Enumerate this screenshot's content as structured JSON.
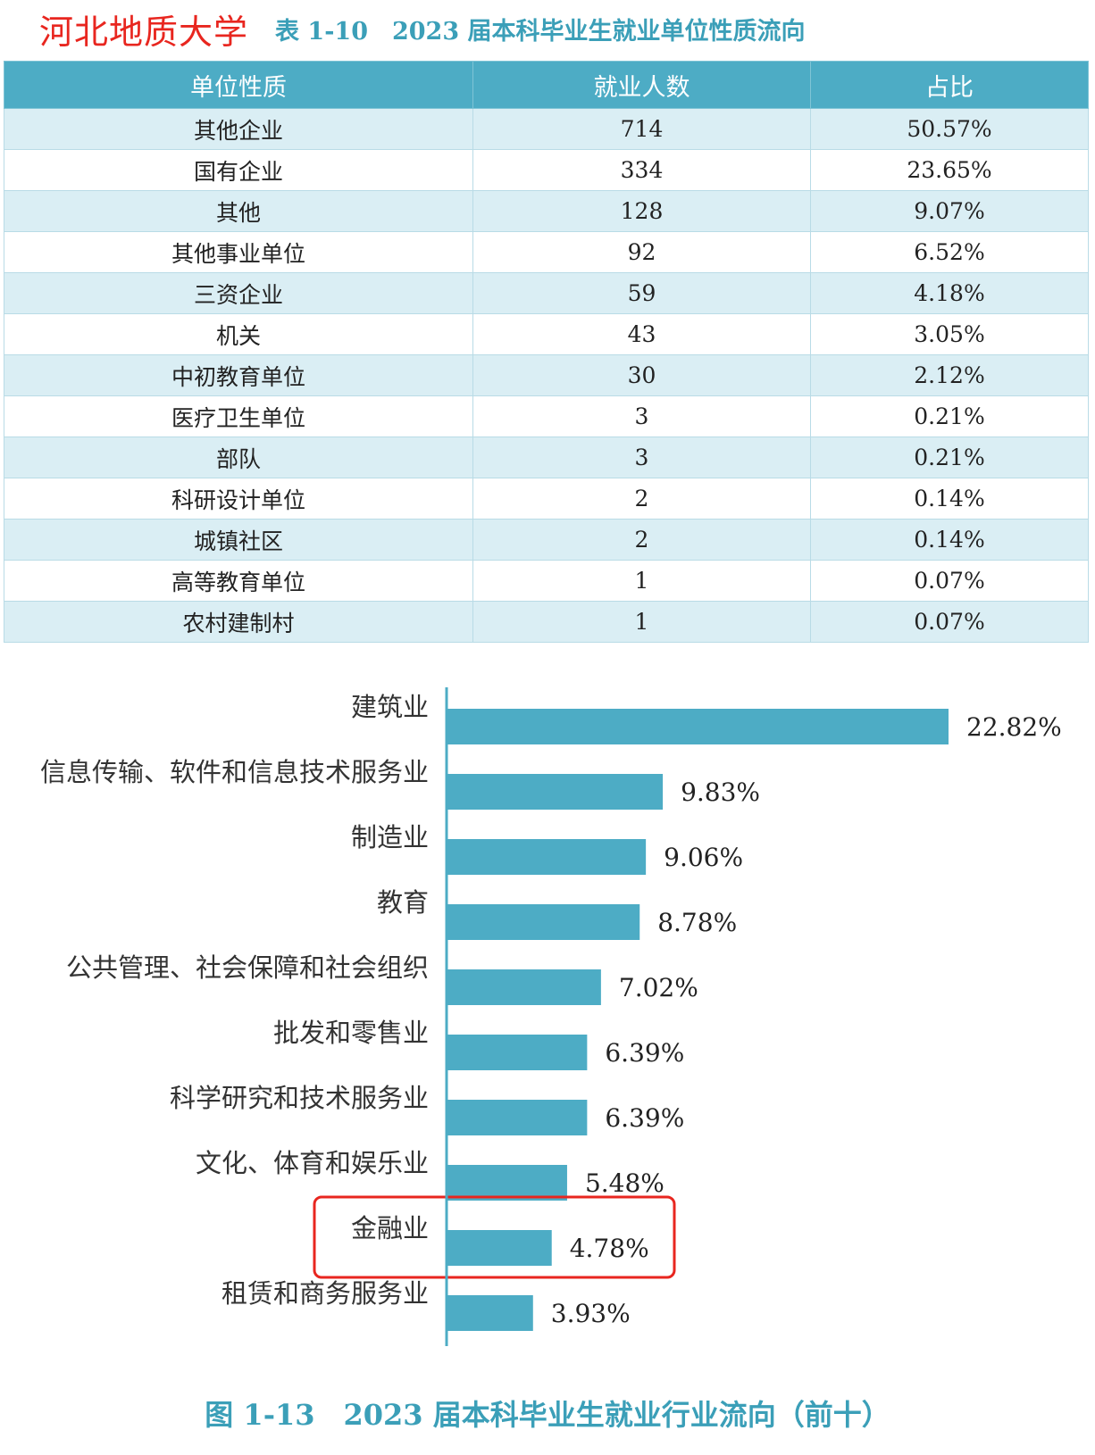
{
  "header": {
    "school": "河北地质大学",
    "table_caption": "表 1-10　2023 届本科毕业生就业单位性质流向"
  },
  "table": {
    "columns": [
      "单位性质",
      "就业人数",
      "占比"
    ],
    "rows": [
      [
        "其他企业",
        "714",
        "50.57%"
      ],
      [
        "国有企业",
        "334",
        "23.65%"
      ],
      [
        "其他",
        "128",
        "9.07%"
      ],
      [
        "其他事业单位",
        "92",
        "6.52%"
      ],
      [
        "三资企业",
        "59",
        "4.18%"
      ],
      [
        "机关",
        "43",
        "3.05%"
      ],
      [
        "中初教育单位",
        "30",
        "2.12%"
      ],
      [
        "医疗卫生单位",
        "3",
        "0.21%"
      ],
      [
        "部队",
        "3",
        "0.21%"
      ],
      [
        "科研设计单位",
        "2",
        "0.14%"
      ],
      [
        "城镇社区",
        "2",
        "0.14%"
      ],
      [
        "高等教育单位",
        "1",
        "0.07%"
      ],
      [
        "农村建制村",
        "1",
        "0.07%"
      ]
    ]
  },
  "chart_data": {
    "type": "bar",
    "orientation": "horizontal",
    "categories": [
      "建筑业",
      "信息传输、软件和信息技术服务业",
      "制造业",
      "教育",
      "公共管理、社会保障和社会组织",
      "批发和零售业",
      "科学研究和技术服务业",
      "文化、体育和娱乐业",
      "金融业",
      "租赁和商务服务业"
    ],
    "values": [
      22.82,
      9.83,
      9.06,
      8.78,
      7.02,
      6.39,
      6.39,
      5.48,
      4.78,
      3.93
    ],
    "value_labels": [
      "22.82%",
      "9.83%",
      "9.06%",
      "8.78%",
      "7.02%",
      "6.39%",
      "6.39%",
      "5.48%",
      "4.78%",
      "3.93%"
    ],
    "unit": "%",
    "bar_color": "#4dacc5",
    "highlight_color": "#e8261f",
    "highlight_category": "金融业",
    "grid": false,
    "legend": "none"
  },
  "figure_caption": "图 1-13　2023 届本科毕业生就业行业流向（前十）"
}
